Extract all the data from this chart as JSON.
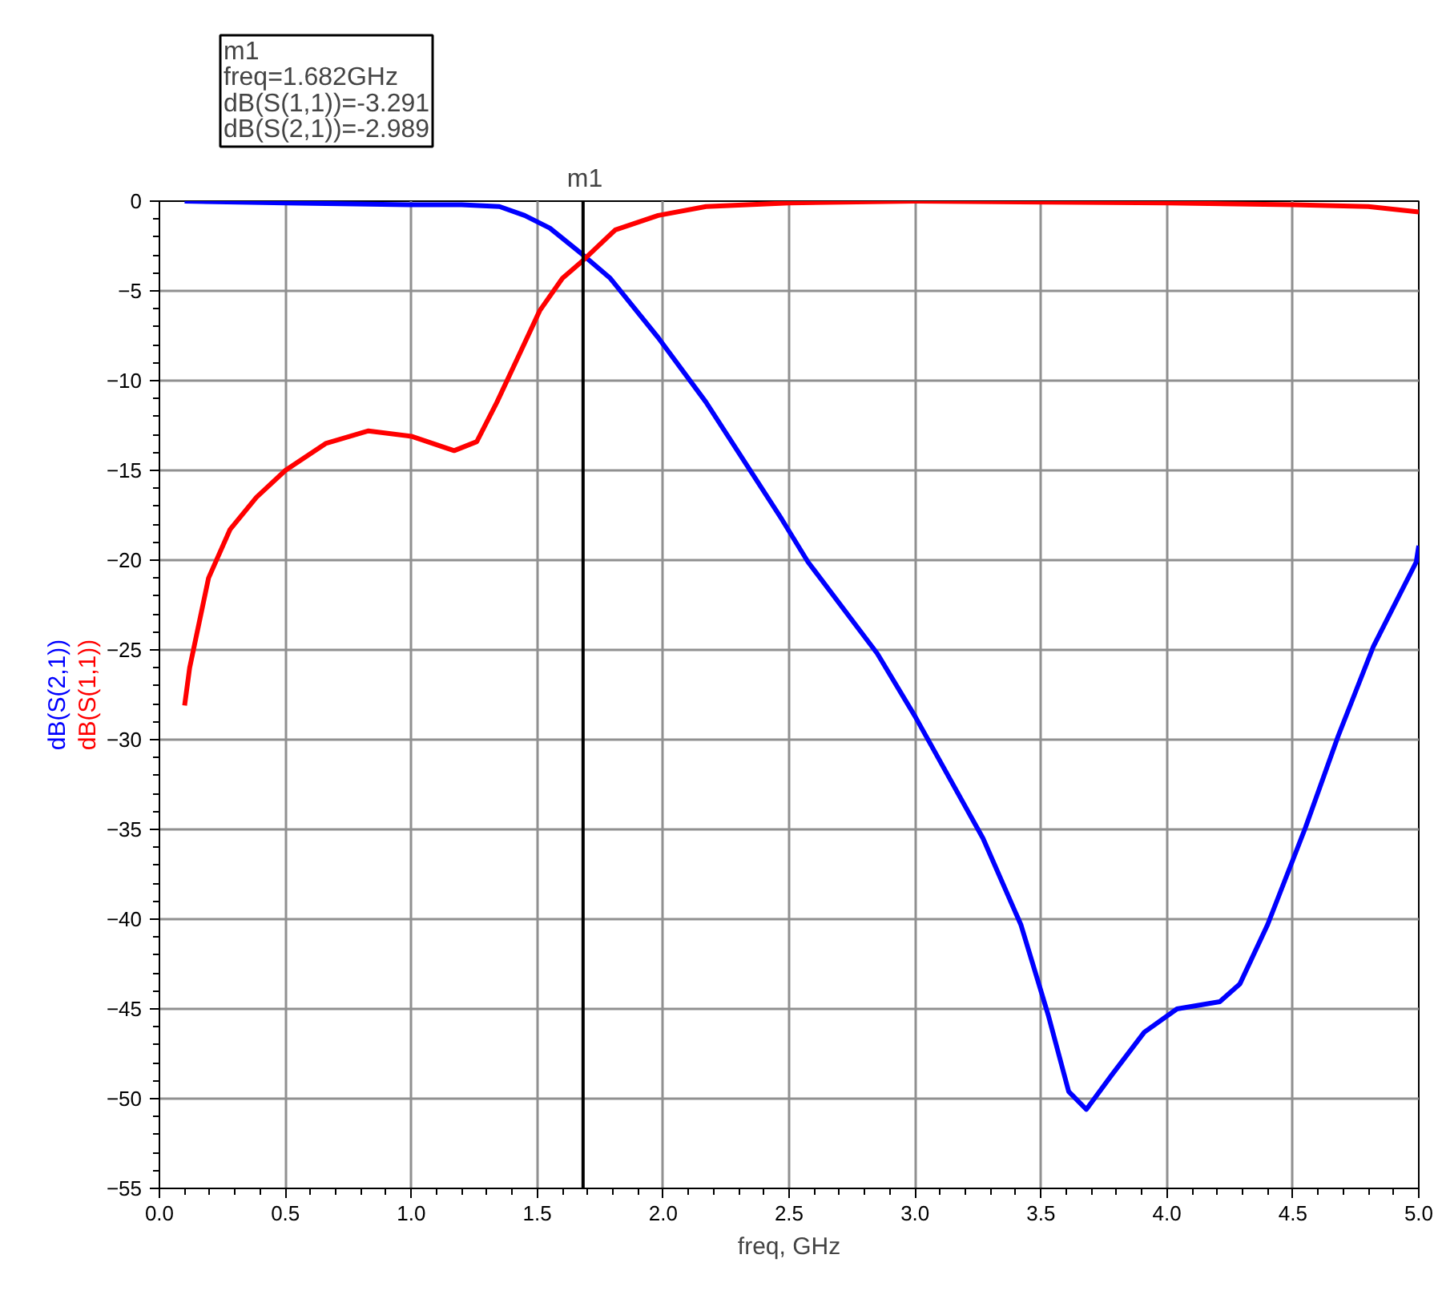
{
  "chart_data": {
    "type": "line",
    "xlabel": "freq, GHz",
    "series": [
      {
        "name": "dB(S(2,1))",
        "color": "#0000ff",
        "x": [
          0.1,
          0.5,
          1.0,
          1.2,
          1.35,
          1.45,
          1.55,
          1.682,
          1.79,
          1.98,
          2.17,
          2.47,
          2.575,
          2.85,
          3.0,
          3.27,
          3.42,
          3.53,
          3.61,
          3.68,
          3.78,
          3.91,
          4.04,
          4.21,
          4.29,
          4.4,
          4.55,
          4.68,
          4.82,
          4.99,
          5.0
        ],
        "values": [
          0,
          -0.1,
          -0.2,
          -0.2,
          -0.3,
          -0.8,
          -1.5,
          -3.0,
          -4.3,
          -7.6,
          -11.2,
          -17.7,
          -20.1,
          -25.2,
          -28.7,
          -35.5,
          -40.3,
          -45.4,
          -49.6,
          -50.6,
          -48.7,
          -46.3,
          -45.0,
          -44.6,
          -43.6,
          -40.3,
          -34.9,
          -29.8,
          -24.8,
          -20.1,
          -19.2
        ]
      },
      {
        "name": "dB(S(1,1))",
        "color": "#ff0000",
        "x": [
          0.1,
          0.12,
          0.195,
          0.28,
          0.385,
          0.5,
          0.66,
          0.83,
          1.0,
          1.17,
          1.26,
          1.34,
          1.43,
          1.51,
          1.6,
          1.682,
          1.81,
          1.98,
          2.17,
          2.5,
          3.0,
          4.0,
          4.5,
          4.8,
          5.0
        ],
        "values": [
          -28.1,
          -26.0,
          -21.0,
          -18.3,
          -16.5,
          -15.0,
          -13.5,
          -12.8,
          -13.1,
          -13.9,
          -13.4,
          -11.2,
          -8.5,
          -6.1,
          -4.3,
          -3.3,
          -1.6,
          -0.8,
          -0.3,
          -0.1,
          0,
          -0.1,
          -0.2,
          -0.3,
          -0.6
        ]
      }
    ],
    "xlim": [
      0,
      5
    ],
    "ylim": [
      -55,
      0
    ],
    "xticks": [
      {
        "value": 0,
        "label": "0.0"
      },
      0.5,
      {
        "value": 1,
        "label": "1.0"
      },
      1.5,
      {
        "value": 2,
        "label": "2.0"
      },
      2.5,
      {
        "value": 3,
        "label": "3.0"
      },
      3.5,
      {
        "value": 4,
        "label": "4.0"
      },
      4.5,
      {
        "value": 5,
        "label": "5.0"
      }
    ],
    "yticks": [
      0,
      -5,
      -10,
      -15,
      -20,
      -25,
      -30,
      -35,
      -40,
      -45,
      -50,
      -55
    ],
    "grid": true,
    "marker": "none",
    "line_style": "solid",
    "ref_lines": [
      {
        "axis": "x",
        "value": 1.682,
        "label": "m1",
        "color": "#000000"
      }
    ],
    "annotations": [
      "m1",
      "freq=1.682GHz",
      "dB(S(1,1))=-3.291",
      "dB(S(2,1))=-2.989"
    ]
  }
}
